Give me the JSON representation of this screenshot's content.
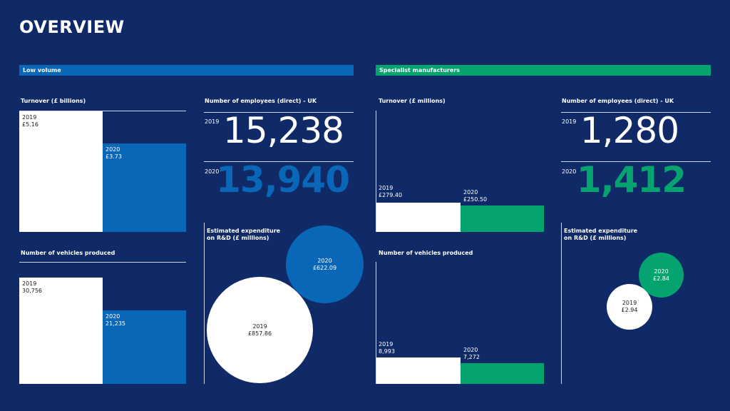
{
  "title": "OVERVIEW",
  "colors": {
    "background": "#0f2a66",
    "low_volume": "#0a67b8",
    "specialist": "#05a36f",
    "white": "#ffffff"
  },
  "low_volume": {
    "banner": "Low volume",
    "turnover": {
      "title": "Turnover (£ billions)",
      "bars": [
        {
          "year": "2019",
          "label": "£5.16",
          "value": 5.16
        },
        {
          "year": "2020",
          "label": "£3.73",
          "value": 3.73
        }
      ]
    },
    "vehicles": {
      "title": "Number of vehicles produced",
      "bars": [
        {
          "year": "2019",
          "label": "30,756",
          "value": 30756
        },
        {
          "year": "2020",
          "label": "21,235",
          "value": 21235
        }
      ]
    },
    "employees": {
      "title": "Number of employees (direct) - UK",
      "rows": [
        {
          "year": "2019",
          "value": "15,238"
        },
        {
          "year": "2020",
          "value": "13,940"
        }
      ]
    },
    "rd": {
      "title_line1": "Estimated expenditure",
      "title_line2": "on R&D (£ millions)",
      "circles": [
        {
          "year": "2019",
          "label": "£857.86",
          "value": 857.86
        },
        {
          "year": "2020",
          "label": "£622.09",
          "value": 622.09
        }
      ]
    }
  },
  "specialist": {
    "banner": "Specialist manufacturers",
    "turnover": {
      "title": "Turnover (£ millions)",
      "bars": [
        {
          "year": "2019",
          "label": "£279.40",
          "value": 279.4
        },
        {
          "year": "2020",
          "label": "£250.50",
          "value": 250.5
        }
      ]
    },
    "vehicles": {
      "title": "Number of vehicles produced",
      "bars": [
        {
          "year": "2019",
          "label": "8,993",
          "value": 8993
        },
        {
          "year": "2020",
          "label": "7,272",
          "value": 7272
        }
      ]
    },
    "employees": {
      "title": "Number of employees (direct) - UK",
      "rows": [
        {
          "year": "2019",
          "value": "1,280"
        },
        {
          "year": "2020",
          "value": "1,412"
        }
      ]
    },
    "rd": {
      "title_line1": "Estimated expenditure",
      "title_line2": "on R&D (£ millions)",
      "circles": [
        {
          "year": "2019",
          "label": "£2.94",
          "value": 2.94
        },
        {
          "year": "2020",
          "label": "£2.84",
          "value": 2.84
        }
      ]
    }
  },
  "chart_data": [
    {
      "type": "bar",
      "title": "Turnover (£ billions)",
      "group": "Low volume",
      "categories": [
        "2019",
        "2020"
      ],
      "values": [
        5.16,
        3.73
      ]
    },
    {
      "type": "bar",
      "title": "Number of vehicles produced",
      "group": "Low volume",
      "categories": [
        "2019",
        "2020"
      ],
      "values": [
        30756,
        21235
      ]
    },
    {
      "type": "table",
      "title": "Number of employees (direct) - UK",
      "group": "Low volume",
      "categories": [
        "2019",
        "2020"
      ],
      "values": [
        15238,
        13940
      ]
    },
    {
      "type": "scatter",
      "title": "Estimated expenditure on R&D (£ millions)",
      "group": "Low volume",
      "categories": [
        "2019",
        "2020"
      ],
      "values": [
        857.86,
        622.09
      ]
    },
    {
      "type": "bar",
      "title": "Turnover (£ millions)",
      "group": "Specialist manufacturers",
      "categories": [
        "2019",
        "2020"
      ],
      "values": [
        279.4,
        250.5
      ]
    },
    {
      "type": "bar",
      "title": "Number of vehicles produced",
      "group": "Specialist manufacturers",
      "categories": [
        "2019",
        "2020"
      ],
      "values": [
        8993,
        7272
      ]
    },
    {
      "type": "table",
      "title": "Number of employees (direct) - UK",
      "group": "Specialist manufacturers",
      "categories": [
        "2019",
        "2020"
      ],
      "values": [
        1280,
        1412
      ]
    },
    {
      "type": "scatter",
      "title": "Estimated expenditure on R&D (£ millions)",
      "group": "Specialist manufacturers",
      "categories": [
        "2019",
        "2020"
      ],
      "values": [
        2.94,
        2.84
      ]
    }
  ]
}
